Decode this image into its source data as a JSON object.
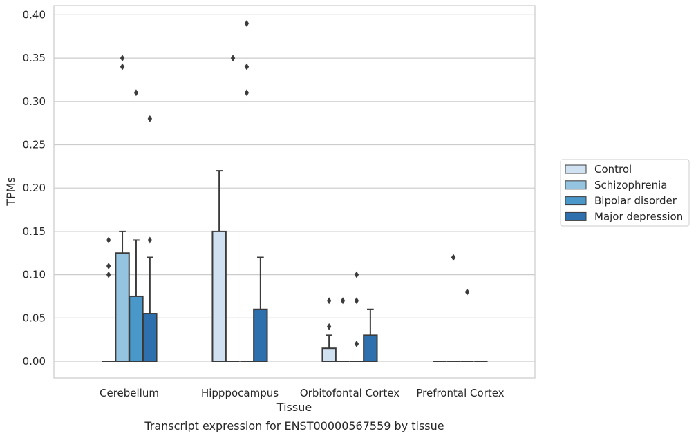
{
  "chart_data": {
    "type": "boxplot",
    "title": "",
    "caption": "Transcript expression for ENST00000567559 by tissue",
    "xlabel": "Tissue",
    "ylabel": "TPMs",
    "ylim": [
      -0.018,
      0.41
    ],
    "yticks": [
      0.0,
      0.05,
      0.1,
      0.15,
      0.2,
      0.25,
      0.3,
      0.35,
      0.4
    ],
    "ytick_labels": [
      "0.00",
      "0.05",
      "0.10",
      "0.15",
      "0.20",
      "0.25",
      "0.30",
      "0.35",
      "0.40"
    ],
    "grid": "horizontal",
    "legend_position": "right",
    "categories": [
      "Cerebellum",
      "Hipppocampus",
      "Orbitofontal Cortex",
      "Prefrontal Cortex"
    ],
    "series": [
      {
        "name": "Control",
        "color": "#d0e1f2",
        "boxes": [
          {
            "q1": 0,
            "median": 0,
            "q3": 0,
            "whisker_low": 0,
            "whisker_high": 0,
            "outliers": [
              0.1,
              0.11,
              0.14
            ]
          },
          {
            "q1": 0,
            "median": 0,
            "q3": 0.15,
            "whisker_low": 0,
            "whisker_high": 0.22,
            "outliers": []
          },
          {
            "q1": 0,
            "median": 0,
            "q3": 0.015,
            "whisker_low": 0,
            "whisker_high": 0.03,
            "outliers": [
              0.04,
              0.07
            ]
          },
          {
            "q1": 0,
            "median": 0,
            "q3": 0,
            "whisker_low": 0,
            "whisker_high": 0,
            "outliers": []
          }
        ]
      },
      {
        "name": "Schizophrenia",
        "color": "#94c4df",
        "boxes": [
          {
            "q1": 0,
            "median": 0,
            "q3": 0.125,
            "whisker_low": 0,
            "whisker_high": 0.15,
            "outliers": [
              0.34,
              0.35
            ]
          },
          {
            "q1": 0,
            "median": 0,
            "q3": 0,
            "whisker_low": 0,
            "whisker_high": 0,
            "outliers": [
              0.35
            ]
          },
          {
            "q1": 0,
            "median": 0,
            "q3": 0,
            "whisker_low": 0,
            "whisker_high": 0,
            "outliers": [
              0.07
            ]
          },
          {
            "q1": 0,
            "median": 0,
            "q3": 0,
            "whisker_low": 0,
            "whisker_high": 0,
            "outliers": [
              0.12
            ]
          }
        ]
      },
      {
        "name": "Bipolar disorder",
        "color": "#4a98c9",
        "boxes": [
          {
            "q1": 0,
            "median": 0,
            "q3": 0.075,
            "whisker_low": 0,
            "whisker_high": 0.14,
            "outliers": [
              0.31
            ]
          },
          {
            "q1": 0,
            "median": 0,
            "q3": 0,
            "whisker_low": 0,
            "whisker_high": 0,
            "outliers": [
              0.31,
              0.34,
              0.39
            ]
          },
          {
            "q1": 0,
            "median": 0,
            "q3": 0,
            "whisker_low": 0,
            "whisker_high": 0,
            "outliers": [
              0.02,
              0.07,
              0.1
            ]
          },
          {
            "q1": 0,
            "median": 0,
            "q3": 0,
            "whisker_low": 0,
            "whisker_high": 0,
            "outliers": [
              0.08
            ]
          }
        ]
      },
      {
        "name": "Major depression",
        "color": "#2e6fae",
        "boxes": [
          {
            "q1": 0,
            "median": 0,
            "q3": 0.055,
            "whisker_low": 0,
            "whisker_high": 0.12,
            "outliers": [
              0.14,
              0.28
            ]
          },
          {
            "q1": 0,
            "median": 0,
            "q3": 0.06,
            "whisker_low": 0,
            "whisker_high": 0.12,
            "outliers": []
          },
          {
            "q1": 0,
            "median": 0,
            "q3": 0.03,
            "whisker_low": 0,
            "whisker_high": 0.06,
            "outliers": []
          },
          {
            "q1": 0,
            "median": 0,
            "q3": 0,
            "whisker_low": 0,
            "whisker_high": 0,
            "outliers": []
          }
        ]
      }
    ]
  }
}
